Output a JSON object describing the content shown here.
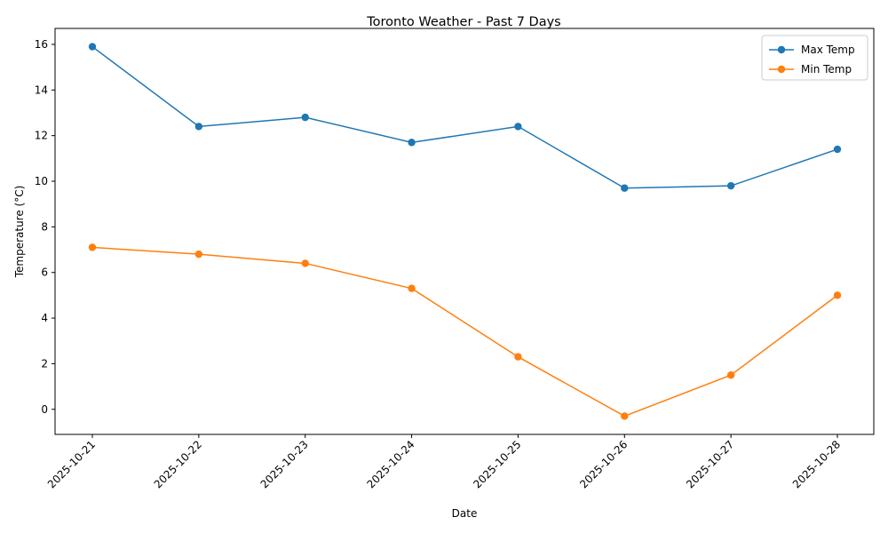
{
  "chart_data": {
    "type": "line",
    "title": "Toronto Weather - Past 7 Days",
    "xlabel": "Date",
    "ylabel": "Temperature (°C)",
    "x": [
      "2025-10-21",
      "2025-10-22",
      "2025-10-23",
      "2025-10-24",
      "2025-10-25",
      "2025-10-26",
      "2025-10-27",
      "2025-10-28"
    ],
    "ylim": [
      -1.1,
      16.7
    ],
    "yticks": [
      0,
      2,
      4,
      6,
      8,
      10,
      12,
      14,
      16
    ],
    "grid": false,
    "legend_position": "top-right",
    "series": [
      {
        "name": "Max Temp",
        "color": "#1f77b4",
        "marker": "circle",
        "values": [
          15.9,
          12.4,
          12.8,
          11.7,
          12.4,
          9.7,
          9.8,
          11.4
        ]
      },
      {
        "name": "Min Temp",
        "color": "#ff7f0e",
        "marker": "circle",
        "values": [
          7.1,
          6.8,
          6.4,
          5.3,
          2.3,
          -0.3,
          1.5,
          5.0
        ]
      }
    ]
  }
}
